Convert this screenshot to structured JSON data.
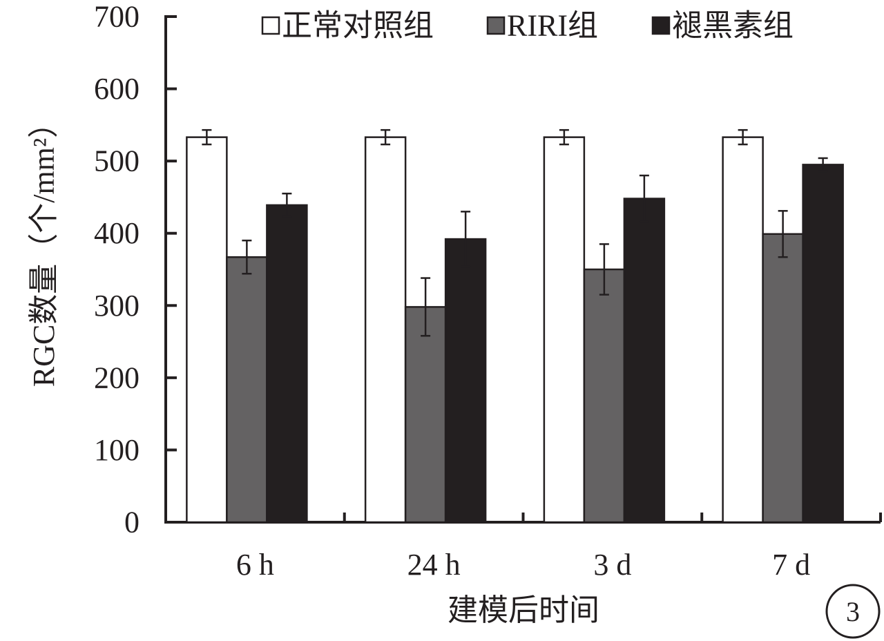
{
  "chart_data": {
    "type": "bar",
    "categories": [
      "6 h",
      "24 h",
      "3 d",
      "7 d"
    ],
    "series": [
      {
        "name": "正常对照组",
        "values": [
          533,
          533,
          533,
          533
        ],
        "errors": [
          10,
          10,
          10,
          10
        ],
        "color": "#ffffff"
      },
      {
        "name": "RIRI组",
        "values": [
          367,
          298,
          350,
          399
        ],
        "errors": [
          23,
          40,
          35,
          32
        ],
        "color": "#646263"
      },
      {
        "name": "褪黑素组",
        "values": [
          439,
          392,
          448,
          495
        ],
        "errors": [
          16,
          38,
          32,
          9
        ],
        "color": "#231f20"
      }
    ],
    "xlabel": "建模后时间",
    "ylabel": "RGC数量（个/mm²）",
    "ylim": [
      0,
      700
    ],
    "yticks": [
      "0",
      "100",
      "200",
      "300",
      "400",
      "500",
      "600",
      "700"
    ],
    "legend_position": "top",
    "grid": false
  },
  "panel_label": "3",
  "colors": {
    "axis": "#231f20",
    "bar_outline": "#231f20"
  }
}
